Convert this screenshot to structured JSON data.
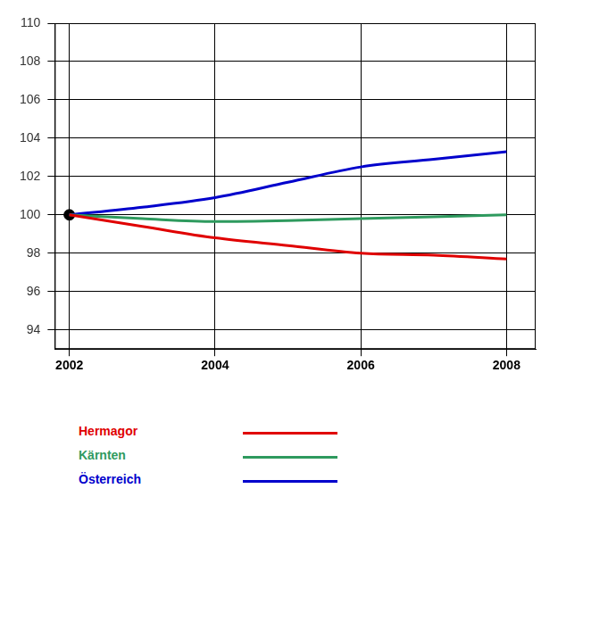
{
  "chart_data": {
    "type": "line",
    "x": [
      2002,
      2003,
      2004,
      2005,
      2006,
      2007,
      2008
    ],
    "series": [
      {
        "name": "Hermagor",
        "color": "#e00000",
        "values": [
          100,
          99.4,
          98.8,
          98.4,
          98.0,
          97.9,
          97.7
        ]
      },
      {
        "name": "Kärnten",
        "color": "#2e9a5e",
        "values": [
          100,
          99.8,
          99.65,
          99.7,
          99.8,
          99.9,
          100.0
        ]
      },
      {
        "name": "Österreich",
        "color": "#0000cc",
        "values": [
          100,
          100.4,
          100.9,
          101.7,
          102.5,
          102.9,
          103.3
        ]
      }
    ],
    "points": [
      {
        "x": 2002,
        "y": 100,
        "color": "#000000"
      }
    ],
    "xlim": [
      2001.8,
      2008.4
    ],
    "xticks": [
      2002,
      2004,
      2006,
      2008
    ],
    "ylim": [
      93,
      110
    ],
    "yticks": [
      94,
      96,
      98,
      100,
      102,
      104,
      106,
      108,
      110
    ],
    "grid": true,
    "legend": "bottom"
  }
}
